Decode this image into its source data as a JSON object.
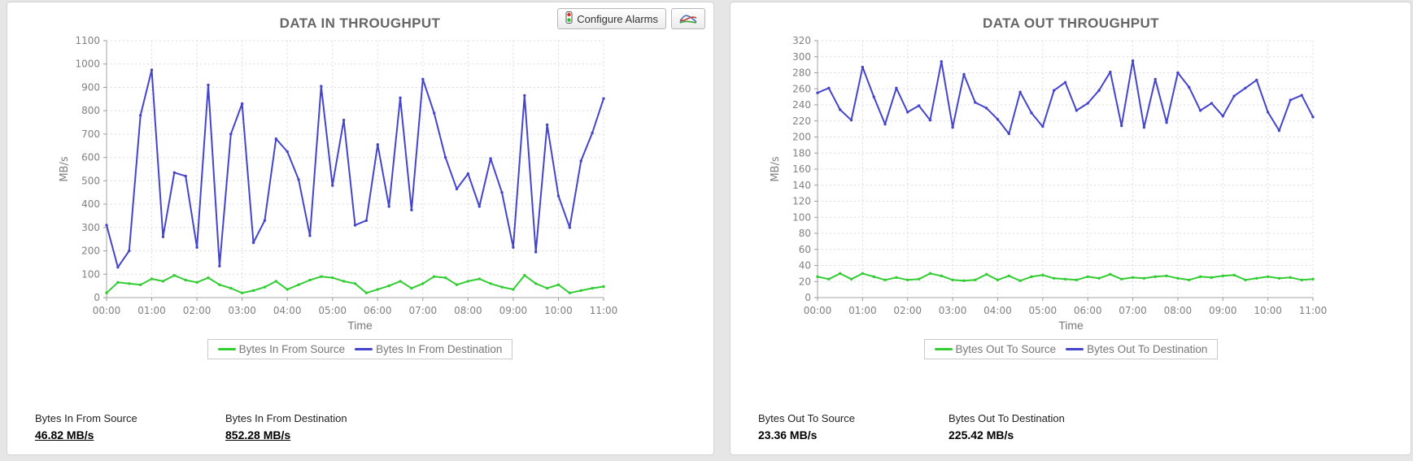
{
  "page_bg": "#e6e6e6",
  "toolbar": {
    "configure_alarms_label": "Configure Alarms",
    "icons": {
      "traffic_light": "traffic-light-icon",
      "chart_button": "line-chart-icon"
    }
  },
  "chart_data": [
    {
      "type": "line",
      "title": "DATA IN THROUGHPUT",
      "xlabel": "Time",
      "ylabel": "MB/s",
      "ylim": [
        0,
        1100
      ],
      "ystep": 100,
      "grid": true,
      "legend_position": "bottom",
      "x_tick_labels": [
        "00:00",
        "01:00",
        "02:00",
        "03:00",
        "04:00",
        "05:00",
        "06:00",
        "07:00",
        "08:00",
        "09:00",
        "10:00",
        "11:00"
      ],
      "series": [
        {
          "name": "Bytes In From Source",
          "color": "#32cd32",
          "values": [
            20,
            65,
            60,
            55,
            80,
            70,
            95,
            75,
            65,
            85,
            55,
            40,
            20,
            30,
            45,
            70,
            35,
            55,
            75,
            90,
            85,
            70,
            60,
            20,
            35,
            50,
            70,
            40,
            60,
            90,
            85,
            55,
            70,
            80,
            60,
            45,
            35,
            95,
            60,
            40,
            55,
            20,
            30,
            40,
            47
          ]
        },
        {
          "name": "Bytes In From Destination",
          "color": "#4444cc",
          "values": [
            310,
            130,
            200,
            780,
            975,
            260,
            535,
            520,
            215,
            910,
            135,
            700,
            830,
            235,
            330,
            680,
            625,
            505,
            265,
            905,
            480,
            760,
            310,
            330,
            655,
            390,
            855,
            375,
            935,
            790,
            600,
            465,
            530,
            390,
            595,
            450,
            215,
            865,
            195,
            740,
            435,
            300,
            585,
            705,
            852
          ]
        }
      ]
    },
    {
      "type": "line",
      "title": "DATA OUT THROUGHPUT",
      "xlabel": "Time",
      "ylabel": "MB/s",
      "ylim": [
        0,
        320
      ],
      "ystep": 20,
      "grid": true,
      "legend_position": "bottom",
      "x_tick_labels": [
        "00:00",
        "01:00",
        "02:00",
        "03:00",
        "04:00",
        "05:00",
        "06:00",
        "07:00",
        "08:00",
        "09:00",
        "10:00",
        "11:00"
      ],
      "series": [
        {
          "name": "Bytes Out To Source",
          "color": "#32cd32",
          "values": [
            26,
            23,
            30,
            23,
            30,
            26,
            22,
            25,
            22,
            23,
            30,
            27,
            22,
            21,
            22,
            29,
            22,
            27,
            21,
            26,
            28,
            24,
            23,
            22,
            26,
            24,
            29,
            23,
            25,
            24,
            26,
            27,
            24,
            22,
            26,
            25,
            27,
            28,
            22,
            24,
            26,
            24,
            25,
            22,
            23
          ]
        },
        {
          "name": "Bytes Out To Destination",
          "color": "#4444cc",
          "values": [
            255,
            261,
            234,
            221,
            287,
            250,
            216,
            261,
            231,
            239,
            221,
            294,
            212,
            278,
            243,
            236,
            222,
            204,
            256,
            230,
            213,
            258,
            268,
            233,
            242,
            258,
            281,
            214,
            295,
            212,
            272,
            218,
            280,
            262,
            233,
            242,
            226,
            251,
            261,
            271,
            231,
            208,
            246,
            252,
            225
          ]
        }
      ]
    }
  ],
  "panels": [
    {
      "stats": [
        {
          "label": "Bytes In From Source",
          "value": "46.82 MB/s",
          "underline": true
        },
        {
          "label": "Bytes In From Destination",
          "value": "852.28 MB/s",
          "underline": true
        }
      ]
    },
    {
      "stats": [
        {
          "label": "Bytes Out To Source",
          "value": "23.36 MB/s",
          "underline": false
        },
        {
          "label": "Bytes Out To Destination",
          "value": "225.42 MB/s",
          "underline": false
        }
      ]
    }
  ]
}
